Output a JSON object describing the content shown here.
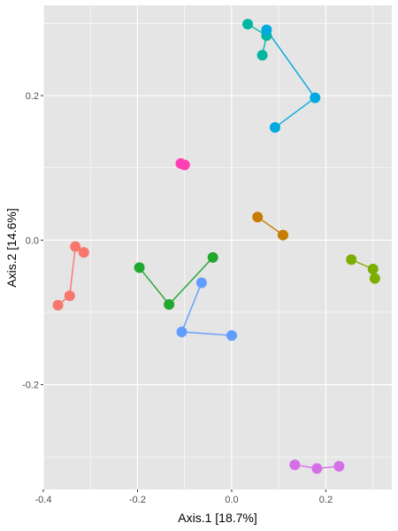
{
  "chart_data": {
    "type": "scatter",
    "title": "",
    "xlabel": "Axis.1   [18.7%]",
    "ylabel": "Axis.2   [14.6%]",
    "xlim": [
      -0.4,
      0.34
    ],
    "ylim": [
      -0.345,
      0.325
    ],
    "x_ticks": [
      -0.4,
      -0.2,
      0.0,
      0.2
    ],
    "x_tick_labels": [
      "-0.4",
      "-0.2",
      "0.0",
      "0.2"
    ],
    "y_ticks": [
      -0.2,
      0.0,
      0.2
    ],
    "y_tick_labels": [
      "-0.2",
      "0.0",
      "0.2"
    ],
    "grid": true,
    "panel_background": "#e5e5e5",
    "grid_color": "#ffffff",
    "groups": [
      {
        "color": "#f8766d",
        "points": [
          [
            -0.369,
            -0.09
          ],
          [
            -0.344,
            -0.077
          ],
          [
            -0.332,
            -0.009
          ],
          [
            -0.314,
            -0.017
          ]
        ]
      },
      {
        "color": "#22a731",
        "points": [
          [
            -0.196,
            -0.038
          ],
          [
            -0.133,
            -0.089
          ],
          [
            -0.04,
            -0.024
          ]
        ]
      },
      {
        "color": "#619cff",
        "points": [
          [
            -0.064,
            -0.059
          ],
          [
            -0.106,
            -0.127
          ],
          [
            0.0,
            -0.132
          ]
        ]
      },
      {
        "color": "#ff3fb2",
        "points": [
          [
            -0.108,
            0.106
          ],
          [
            -0.1,
            0.104
          ]
        ]
      },
      {
        "color": "#c57c00",
        "points": [
          [
            0.055,
            0.032
          ],
          [
            0.109,
            0.007
          ]
        ]
      },
      {
        "color": "#7cae00",
        "points": [
          [
            0.254,
            -0.027
          ],
          [
            0.3,
            -0.04
          ],
          [
            0.304,
            -0.053
          ]
        ]
      },
      {
        "color": "#00b79f",
        "points": [
          [
            0.034,
            0.299
          ],
          [
            0.074,
            0.283
          ],
          [
            0.065,
            0.256
          ]
        ]
      },
      {
        "color": "#00a9e0",
        "points": [
          [
            0.074,
            0.291
          ],
          [
            0.177,
            0.197
          ],
          [
            0.092,
            0.156
          ]
        ]
      },
      {
        "color": "#d56fe8",
        "points": [
          [
            0.134,
            -0.311
          ],
          [
            0.181,
            -0.316
          ],
          [
            0.228,
            -0.313
          ]
        ]
      }
    ]
  }
}
